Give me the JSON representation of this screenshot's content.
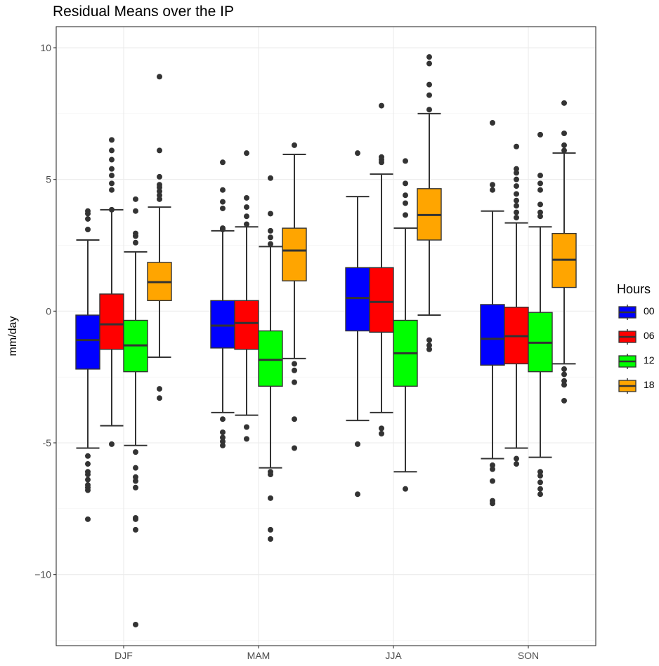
{
  "chart_data": {
    "type": "boxplot",
    "title": "Residual Means over the IP",
    "xlabel": "",
    "ylabel": "mm/day",
    "categories": [
      "DJF",
      "MAM",
      "JJA",
      "SON"
    ],
    "ylim": [
      -12.7,
      10.8
    ],
    "yticks": [
      10,
      5,
      0,
      -5,
      -10
    ],
    "ytick_labels": [
      "10",
      "5",
      "0",
      "-5",
      "−10"
    ],
    "grid": true,
    "legend_title": "Hours",
    "legend_position": "right",
    "series": [
      {
        "name": "00",
        "color": "#0000FF",
        "boxes": [
          {
            "q1": -2.2,
            "median": -1.1,
            "q3": -0.15,
            "whisker_low": -5.2,
            "whisker_high": 2.7,
            "outliers": [
              3.8,
              3.7,
              3.5,
              3.1,
              -5.5,
              -5.8,
              -6.1,
              -6.2,
              -6.4,
              -6.6,
              -6.7,
              -6.8,
              -7.9
            ]
          },
          {
            "q1": -1.4,
            "median": -0.55,
            "q3": 0.4,
            "whisker_low": -3.85,
            "whisker_high": 3.05,
            "outliers": [
              5.65,
              4.6,
              4.15,
              3.9,
              3.15,
              3.1,
              -4.1,
              -4.6,
              -4.8,
              -4.95,
              -5.1
            ]
          },
          {
            "q1": -0.75,
            "median": 0.5,
            "q3": 1.65,
            "whisker_low": -4.15,
            "whisker_high": 4.35,
            "outliers": [
              6.0,
              -5.05,
              -6.95
            ]
          },
          {
            "q1": -2.05,
            "median": -1.05,
            "q3": 0.25,
            "whisker_low": -5.6,
            "whisker_high": 3.8,
            "outliers": [
              7.15,
              4.8,
              4.6,
              -5.85,
              -6.0,
              -6.45,
              -7.2,
              -7.3
            ]
          }
        ]
      },
      {
        "name": "06",
        "color": "#FF0000",
        "boxes": [
          {
            "q1": -1.45,
            "median": -0.5,
            "q3": 0.65,
            "whisker_low": -4.35,
            "whisker_high": 3.85,
            "outliers": [
              6.5,
              6.1,
              5.75,
              5.4,
              5.15,
              4.85,
              4.6,
              3.85,
              -5.05
            ]
          },
          {
            "q1": -1.45,
            "median": -0.45,
            "q3": 0.4,
            "whisker_low": -3.95,
            "whisker_high": 3.2,
            "outliers": [
              6.0,
              4.3,
              3.95,
              3.6,
              3.3,
              -4.4,
              -4.85
            ]
          },
          {
            "q1": -0.8,
            "median": 0.35,
            "q3": 1.65,
            "whisker_low": -3.85,
            "whisker_high": 5.2,
            "outliers": [
              7.8,
              5.85,
              5.75,
              5.65,
              -4.45,
              -4.65
            ]
          },
          {
            "q1": -2.0,
            "median": -0.95,
            "q3": 0.15,
            "whisker_low": -5.2,
            "whisker_high": 3.35,
            "outliers": [
              6.25,
              5.4,
              5.25,
              5.0,
              4.75,
              4.45,
              4.2,
              4.0,
              3.75,
              3.55,
              -5.6,
              -5.8
            ]
          }
        ]
      },
      {
        "name": "12",
        "color": "#00FF00",
        "boxes": [
          {
            "q1": -2.3,
            "median": -1.3,
            "q3": -0.35,
            "whisker_low": -5.1,
            "whisker_high": 2.25,
            "outliers": [
              4.25,
              3.8,
              2.95,
              2.85,
              2.6,
              -5.35,
              -5.95,
              -6.3,
              -6.45,
              -6.7,
              -7.85,
              -7.9,
              -8.3,
              -11.9
            ]
          },
          {
            "q1": -2.85,
            "median": -1.85,
            "q3": -0.75,
            "whisker_low": -5.95,
            "whisker_high": 2.45,
            "outliers": [
              5.05,
              3.7,
              3.05,
              2.8,
              2.55,
              -6.1,
              -6.2,
              -7.1,
              -8.3,
              -8.65
            ]
          },
          {
            "q1": -2.85,
            "median": -1.6,
            "q3": -0.35,
            "whisker_low": -6.1,
            "whisker_high": 3.15,
            "outliers": [
              5.7,
              4.85,
              4.4,
              4.1,
              3.65,
              -6.75
            ]
          },
          {
            "q1": -2.3,
            "median": -1.2,
            "q3": -0.05,
            "whisker_low": -5.55,
            "whisker_high": 3.2,
            "outliers": [
              6.7,
              5.15,
              4.85,
              4.6,
              4.05,
              3.75,
              3.6,
              -6.1,
              -6.25,
              -6.5,
              -6.75,
              -6.95
            ]
          }
        ]
      },
      {
        "name": "18",
        "color": "#FFA500",
        "boxes": [
          {
            "q1": 0.4,
            "median": 1.1,
            "q3": 1.85,
            "whisker_low": -1.75,
            "whisker_high": 3.95,
            "outliers": [
              8.9,
              6.1,
              5.1,
              4.8,
              4.7,
              4.55,
              4.4,
              4.25,
              -2.95,
              -3.3
            ]
          },
          {
            "q1": 1.15,
            "median": 2.3,
            "q3": 3.15,
            "whisker_low": -1.8,
            "whisker_high": 5.95,
            "outliers": [
              6.3,
              -2.0,
              -2.25,
              -2.7,
              -4.1,
              -5.2
            ]
          },
          {
            "q1": 2.7,
            "median": 3.65,
            "q3": 4.65,
            "whisker_low": -0.15,
            "whisker_high": 7.5,
            "outliers": [
              9.65,
              9.4,
              8.6,
              8.2,
              7.65,
              -1.1,
              -1.3,
              -1.45
            ]
          },
          {
            "q1": 0.9,
            "median": 1.95,
            "q3": 2.95,
            "whisker_low": -2.0,
            "whisker_high": 6.0,
            "outliers": [
              7.9,
              6.75,
              6.3,
              6.1,
              -2.2,
              -2.4,
              -2.65,
              -2.8,
              -3.4
            ]
          }
        ]
      }
    ]
  }
}
